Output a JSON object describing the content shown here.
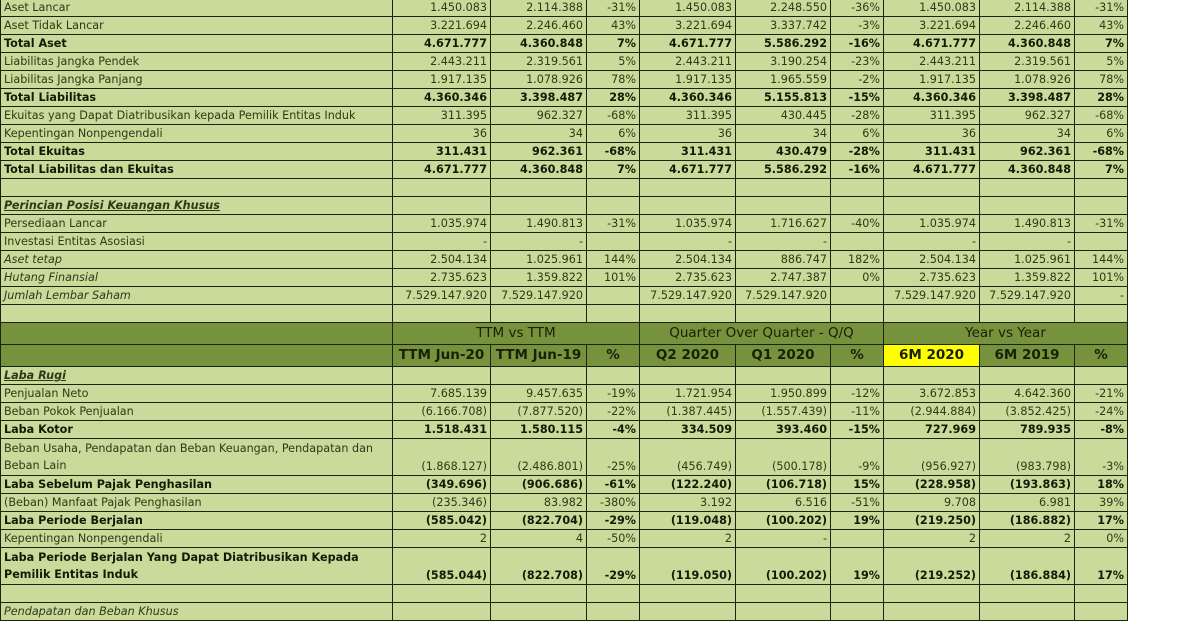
{
  "balance_sheet": [
    {
      "label": "Aset Lancar",
      "style": "normal",
      "v": [
        "1.450.083",
        "2.114.388",
        "-31%",
        "1.450.083",
        "2.248.550",
        "-36%",
        "1.450.083",
        "2.114.388",
        "-31%"
      ]
    },
    {
      "label": "Aset Tidak Lancar",
      "style": "normal",
      "v": [
        "3.221.694",
        "2.246.460",
        "43%",
        "3.221.694",
        "3.337.742",
        "-3%",
        "3.221.694",
        "2.246.460",
        "43%"
      ]
    },
    {
      "label": "Total Aset",
      "style": "bold",
      "v": [
        "4.671.777",
        "4.360.848",
        "7%",
        "4.671.777",
        "5.586.292",
        "-16%",
        "4.671.777",
        "4.360.848",
        "7%"
      ]
    },
    {
      "label": "Liabilitas Jangka Pendek",
      "style": "normal",
      "v": [
        "2.443.211",
        "2.319.561",
        "5%",
        "2.443.211",
        "3.190.254",
        "-23%",
        "2.443.211",
        "2.319.561",
        "5%"
      ]
    },
    {
      "label": "Liabilitas Jangka Panjang",
      "style": "normal",
      "v": [
        "1.917.135",
        "1.078.926",
        "78%",
        "1.917.135",
        "1.965.559",
        "-2%",
        "1.917.135",
        "1.078.926",
        "78%"
      ]
    },
    {
      "label": "Total Liabilitas",
      "style": "bold",
      "v": [
        "4.360.346",
        "3.398.487",
        "28%",
        "4.360.346",
        "5.155.813",
        "-15%",
        "4.360.346",
        "3.398.487",
        "28%"
      ]
    },
    {
      "label": "Ekuitas yang Dapat Diatribusikan kepada Pemilik Entitas Induk",
      "style": "normal",
      "v": [
        "311.395",
        "962.327",
        "-68%",
        "311.395",
        "430.445",
        "-28%",
        "311.395",
        "962.327",
        "-68%"
      ]
    },
    {
      "label": "Kepentingan Nonpengendali",
      "style": "normal",
      "v": [
        "36",
        "34",
        "6%",
        "36",
        "34",
        "6%",
        "36",
        "34",
        "6%"
      ]
    },
    {
      "label": "Total Ekuitas",
      "style": "bold",
      "v": [
        "311.431",
        "962.361",
        "-68%",
        "311.431",
        "430.479",
        "-28%",
        "311.431",
        "962.361",
        "-68%"
      ]
    },
    {
      "label": "Total Liabilitas dan Ekuitas",
      "style": "bold",
      "v": [
        "4.671.777",
        "4.360.848",
        "7%",
        "4.671.777",
        "5.586.292",
        "-16%",
        "4.671.777",
        "4.360.848",
        "7%"
      ]
    },
    {
      "label": "",
      "style": "normal",
      "v": [
        "",
        "",
        "",
        "",
        "",
        "",
        "",
        "",
        ""
      ]
    },
    {
      "label": "Perincian Posisi Keuangan Khusus",
      "style": "section",
      "v": [
        "",
        "",
        "",
        "",
        "",
        "",
        "",
        "",
        ""
      ]
    },
    {
      "label": "Persediaan Lancar",
      "style": "normal",
      "v": [
        "1.035.974",
        "1.490.813",
        "-31%",
        "1.035.974",
        "1.716.627",
        "-40%",
        "1.035.974",
        "1.490.813",
        "-31%"
      ]
    },
    {
      "label": "Investasi Entitas Asosiasi",
      "style": "normal",
      "v": [
        "-",
        "-",
        "",
        "-",
        "-",
        "",
        "-",
        "-",
        ""
      ]
    },
    {
      "label": "Aset tetap",
      "style": "italic",
      "v": [
        "2.504.134",
        "1.025.961",
        "144%",
        "2.504.134",
        "886.747",
        "182%",
        "2.504.134",
        "1.025.961",
        "144%"
      ]
    },
    {
      "label": "Hutang Finansial",
      "style": "italic",
      "v": [
        "2.735.623",
        "1.359.822",
        "101%",
        "2.735.623",
        "2.747.387",
        "0%",
        "2.735.623",
        "1.359.822",
        "101%"
      ]
    },
    {
      "label": "Jumlah Lembar Saham",
      "style": "italic",
      "v": [
        "7.529.147.920",
        "7.529.147.920",
        "",
        "7.529.147.920",
        "7.529.147.920",
        "",
        "7.529.147.920",
        "7.529.147.920",
        "-"
      ]
    },
    {
      "label": "",
      "style": "normal",
      "v": [
        "",
        "",
        "",
        "",
        "",
        "",
        "",
        "",
        ""
      ]
    }
  ],
  "header": {
    "groups": [
      "TTM vs TTM",
      "Quarter Over Quarter - Q/Q",
      "Year vs Year"
    ],
    "columns": [
      "TTM Jun-20",
      "TTM Jun-19",
      "%",
      "Q2 2020",
      "Q1 2020",
      "%",
      "6M 2020",
      "6M 2019",
      "%"
    ],
    "highlight_color": "#ffff00",
    "header_color": "#76923c",
    "cell_color": "#c9da9a"
  },
  "income_statement": [
    {
      "label": "Laba Rugi",
      "style": "section",
      "v": [
        "",
        "",
        "",
        "",
        "",
        "",
        "",
        "",
        ""
      ]
    },
    {
      "label": "Penjualan Neto",
      "style": "normal",
      "v": [
        "7.685.139",
        "9.457.635",
        "-19%",
        "1.721.954",
        "1.950.899",
        "-12%",
        "3.672.853",
        "4.642.360",
        "-21%"
      ]
    },
    {
      "label": "Beban Pokok Penjualan",
      "style": "normal",
      "v": [
        "(6.166.708)",
        "(7.877.520)",
        "-22%",
        "(1.387.445)",
        "(1.557.439)",
        "-11%",
        "(2.944.884)",
        "(3.852.425)",
        "-24%"
      ]
    },
    {
      "label": "Laba Kotor",
      "style": "bold",
      "v": [
        "1.518.431",
        "1.580.115",
        "-4%",
        "334.509",
        "393.460",
        "-15%",
        "727.969",
        "789.935",
        "-8%"
      ]
    },
    {
      "label": "Beban Usaha, Pendapatan dan Beban Keuangan, Pendapatan dan Beban Lain",
      "style": "tall",
      "v": [
        "(1.868.127)",
        "(2.486.801)",
        "-25%",
        "(456.749)",
        "(500.178)",
        "-9%",
        "(956.927)",
        "(983.798)",
        "-3%"
      ]
    },
    {
      "label": "Laba Sebelum Pajak Penghasilan",
      "style": "bold",
      "v": [
        "(349.696)",
        "(906.686)",
        "-61%",
        "(122.240)",
        "(106.718)",
        "15%",
        "(228.958)",
        "(193.863)",
        "18%"
      ]
    },
    {
      "label": "(Beban) Manfaat Pajak Penghasilan",
      "style": "normal",
      "v": [
        "(235.346)",
        "83.982",
        "-380%",
        "3.192",
        "6.516",
        "-51%",
        "9.708",
        "6.981",
        "39%"
      ]
    },
    {
      "label": "Laba Periode Berjalan",
      "style": "bold",
      "v": [
        "(585.042)",
        "(822.704)",
        "-29%",
        "(119.048)",
        "(100.202)",
        "19%",
        "(219.250)",
        "(186.882)",
        "17%"
      ]
    },
    {
      "label": "Kepentingan Nonpengendali",
      "style": "normal",
      "v": [
        "2",
        "4",
        "-50%",
        "2",
        "-",
        "",
        "2",
        "2",
        "0%"
      ]
    },
    {
      "label": "Laba Periode Berjalan Yang Dapat Diatribusikan Kepada Pemilik Entitas Induk",
      "style": "tallbold",
      "v": [
        "(585.044)",
        "(822.708)",
        "-29%",
        "(119.050)",
        "(100.202)",
        "19%",
        "(219.252)",
        "(186.884)",
        "17%"
      ]
    },
    {
      "label": "",
      "style": "normal",
      "v": [
        "",
        "",
        "",
        "",
        "",
        "",
        "",
        "",
        ""
      ]
    },
    {
      "label": "Pendapatan dan Beban Khusus",
      "style": "section2",
      "v": [
        "",
        "",
        "",
        "",
        "",
        "",
        "",
        "",
        ""
      ]
    }
  ]
}
